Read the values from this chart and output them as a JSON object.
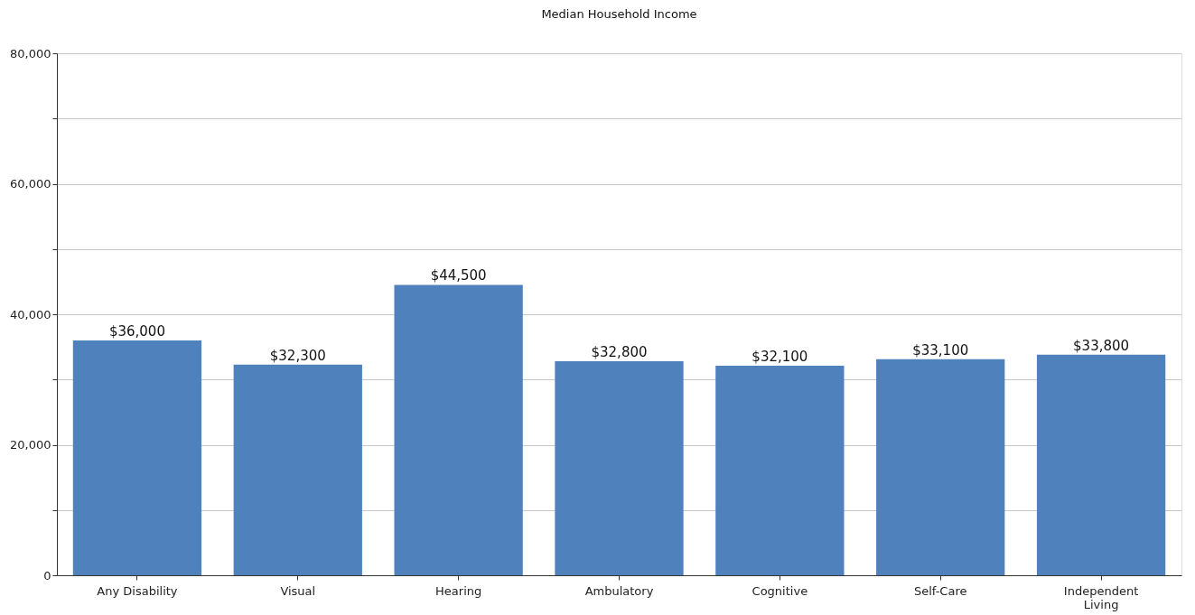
{
  "chart_data": {
    "type": "bar",
    "title": "Median Household Income",
    "categories": [
      "Any Disability",
      "Visual",
      "Hearing",
      "Ambulatory",
      "Cognitive",
      "Self-Care",
      "Independent\nLiving"
    ],
    "values": [
      36000,
      32300,
      44500,
      32800,
      32100,
      33100,
      33800
    ],
    "value_labels": [
      "$36,000",
      "$32,300",
      "$44,500",
      "$32,800",
      "$32,100",
      "$33,100",
      "$33,800"
    ],
    "color": "#4f81bd",
    "ylim": [
      0,
      80000
    ],
    "yticks": [
      0,
      {
        "value": 10000,
        "label": null
      },
      {
        "value": 20000,
        "label": "20,000"
      },
      {
        "value": 30000,
        "label": null
      },
      {
        "value": 40000,
        "label": "40,000"
      },
      {
        "value": 50000,
        "label": null
      },
      {
        "value": 60000,
        "label": "60,000"
      },
      {
        "value": 70000,
        "label": null
      },
      {
        "value": 80000,
        "label": "80,000"
      }
    ],
    "grid": "y"
  }
}
